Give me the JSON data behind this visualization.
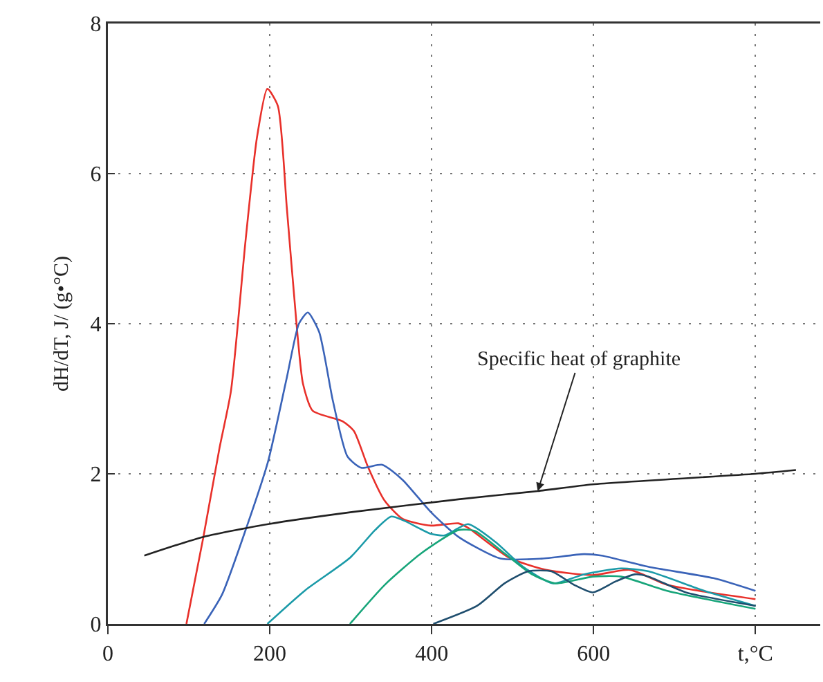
{
  "chart_data": {
    "type": "line",
    "ylabel": "dH/dT, J/ (g•°C)",
    "xlim": [
      0,
      880
    ],
    "ylim": [
      0,
      8
    ],
    "xticks": [
      0,
      200,
      400,
      600,
      {
        "value": 800,
        "label": "t,°C"
      }
    ],
    "yticks": [
      0,
      2,
      4,
      6,
      8
    ],
    "grid": true,
    "marker": "none",
    "line_style": "solid",
    "annotations": [
      {
        "text": "Specific heat of graphite",
        "x": 531,
        "y": 1.77
      }
    ],
    "series": [
      {
        "color": "#e8302a",
        "x": [
          97,
          118,
          138,
          152,
          170,
          184,
          197,
          210,
          221,
          233,
          241,
          253,
          290,
          304,
          321,
          342,
          364,
          399,
          433,
          445,
          496,
          541,
          599,
          645,
          691,
          800
        ],
        "values": [
          0,
          1.16,
          2.35,
          3.1,
          5.1,
          6.47,
          7.13,
          6.9,
          5.55,
          4.0,
          3.2,
          2.84,
          2.7,
          2.57,
          2.1,
          1.64,
          1.4,
          1.31,
          1.34,
          1.28,
          0.88,
          0.72,
          0.65,
          0.72,
          0.52,
          0.33
        ]
      },
      {
        "color": "#3a63b8",
        "x": [
          119,
          141,
          172,
          198,
          221,
          236,
          247,
          261,
          278,
          296,
          313,
          339,
          364,
          399,
          433,
          485,
          536,
          588,
          610,
          668,
          748,
          800
        ],
        "values": [
          0,
          0.39,
          1.31,
          2.17,
          3.28,
          4.0,
          4.15,
          3.89,
          2.97,
          2.23,
          2.08,
          2.12,
          1.92,
          1.49,
          1.16,
          0.87,
          0.87,
          0.93,
          0.91,
          0.76,
          0.61,
          0.44
        ]
      },
      {
        "color": "#1a9aa8",
        "x": [
          197,
          244,
          299,
          330,
          350,
          367,
          399,
          416,
          445,
          479,
          513,
          550,
          588,
          634,
          668,
          737,
          800
        ],
        "values": [
          0,
          0.45,
          0.88,
          1.25,
          1.43,
          1.37,
          1.2,
          1.18,
          1.33,
          1.09,
          0.76,
          0.54,
          0.66,
          0.74,
          0.7,
          0.44,
          0.24
        ]
      },
      {
        "color": "#17a57a",
        "x": [
          299,
          342,
          387,
          433,
          453,
          490,
          524,
          553,
          599,
          634,
          691,
          800
        ],
        "values": [
          0,
          0.52,
          0.94,
          1.25,
          1.24,
          0.94,
          0.66,
          0.54,
          0.63,
          0.63,
          0.44,
          0.2
        ]
      },
      {
        "color": "#1f4e6e",
        "x": [
          402,
          456,
          490,
          519,
          548,
          576,
          599,
          628,
          651,
          668,
          714,
          800
        ],
        "values": [
          0,
          0.24,
          0.54,
          0.7,
          0.7,
          0.52,
          0.42,
          0.57,
          0.66,
          0.63,
          0.42,
          0.24
        ]
      },
      {
        "color": "#222222",
        "x": [
          45,
          118,
          198,
          301,
          433,
          531,
          599,
          800,
          850
        ],
        "values": [
          0.91,
          1.16,
          1.33,
          1.49,
          1.66,
          1.77,
          1.86,
          2.0,
          2.05
        ]
      }
    ]
  }
}
